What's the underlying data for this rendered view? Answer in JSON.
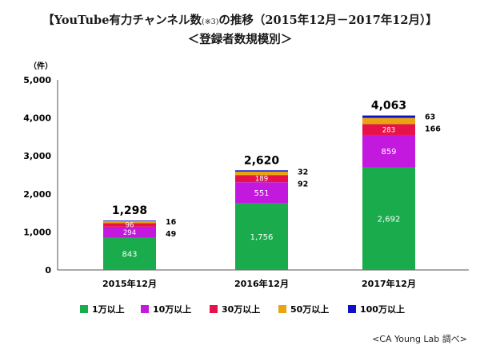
{
  "title": {
    "before_note": "【YouTube有力チャンネル数",
    "note": "(※3)",
    "after_note": "の推移（2015年12月－2017年12月）】",
    "subtitle": "＜登録者数規模別＞"
  },
  "credit": "<CA Young Lab 調べ>",
  "chart_data": {
    "type": "bar",
    "stacked": true,
    "y_unit_label": "（件）",
    "ylim": [
      0,
      5000
    ],
    "yticks": [
      0,
      1000,
      2000,
      3000,
      4000,
      5000
    ],
    "ytick_labels": [
      "0",
      "1,000",
      "2,000",
      "3,000",
      "4,000",
      "5,000"
    ],
    "categories": [
      "2015年12月",
      "2016年12月",
      "2017年12月"
    ],
    "totals": [
      1298,
      2620,
      4063
    ],
    "total_labels": [
      "1,298",
      "2,620",
      "4,063"
    ],
    "grid": false,
    "legend_position": "bottom",
    "series": [
      {
        "name": "1万以上",
        "color": "#1aab4c",
        "values": [
          843,
          1756,
          2692
        ],
        "labels": [
          "843",
          "1,756",
          "2,692"
        ]
      },
      {
        "name": "10万以上",
        "color": "#c318de",
        "values": [
          294,
          551,
          859
        ],
        "labels": [
          "294",
          "551",
          "859"
        ]
      },
      {
        "name": "30万以上",
        "color": "#e8124b",
        "values": [
          96,
          189,
          283
        ],
        "labels": [
          "96",
          "189",
          "283"
        ]
      },
      {
        "name": "50万以上",
        "color": "#e9a412",
        "values": [
          49,
          92,
          166
        ],
        "labels": [
          "49",
          "92",
          "166"
        ]
      },
      {
        "name": "100万以上",
        "color": "#0e12c4",
        "values": [
          16,
          32,
          63
        ],
        "labels": [
          "16",
          "32",
          "63"
        ]
      }
    ]
  }
}
